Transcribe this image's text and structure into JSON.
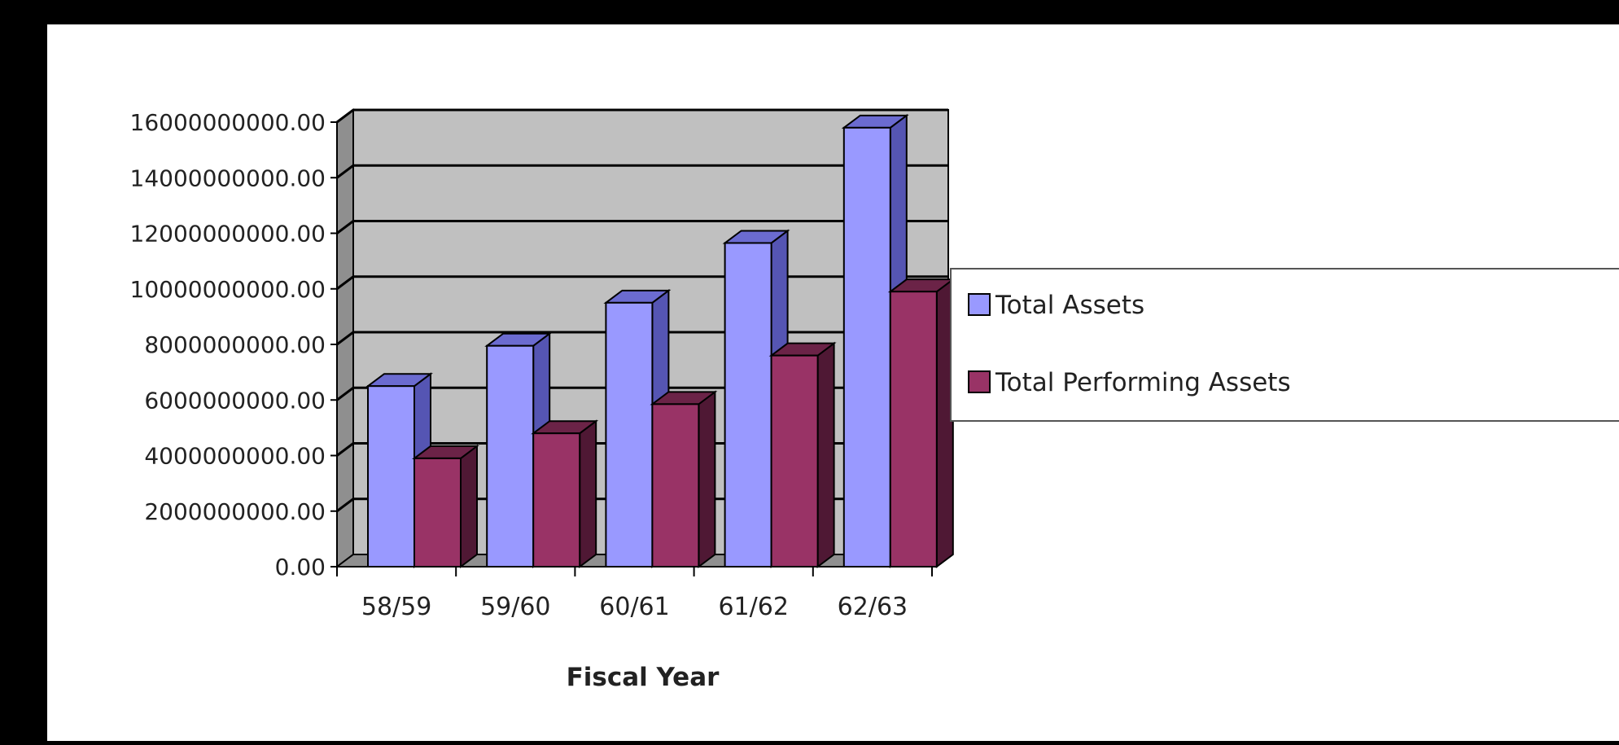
{
  "chart_data": {
    "type": "bar",
    "title": "",
    "xlabel": "Fiscal Year",
    "ylabel": "",
    "categories": [
      "58/59",
      "59/60",
      "60/61",
      "61/62",
      "62/63"
    ],
    "ylim": [
      0,
      16000000000
    ],
    "yticks": [
      {
        "value": 0,
        "label": "0.00"
      },
      {
        "value": 2000000000,
        "label": "2000000000.00"
      },
      {
        "value": 4000000000,
        "label": "4000000000.00"
      },
      {
        "value": 6000000000,
        "label": "6000000000.00"
      },
      {
        "value": 8000000000,
        "label": "8000000000.00"
      },
      {
        "value": 10000000000,
        "label": "10000000000.00"
      },
      {
        "value": 12000000000,
        "label": "12000000000.00"
      },
      {
        "value": 14000000000,
        "label": "14000000000.00"
      },
      {
        "value": 16000000000,
        "label": "16000000000.00"
      }
    ],
    "series": [
      {
        "name": "Total Assets",
        "color": "#9999ff",
        "values": [
          6500000000,
          7950000000,
          9500000000,
          11650000000,
          15800000000
        ]
      },
      {
        "name": "Total Performing Assets",
        "color": "#993366",
        "values": [
          3900000000,
          4800000000,
          5850000000,
          7600000000,
          9900000000
        ]
      }
    ],
    "grid": true,
    "legend_position": "right",
    "style": "3d-clustered-column"
  }
}
